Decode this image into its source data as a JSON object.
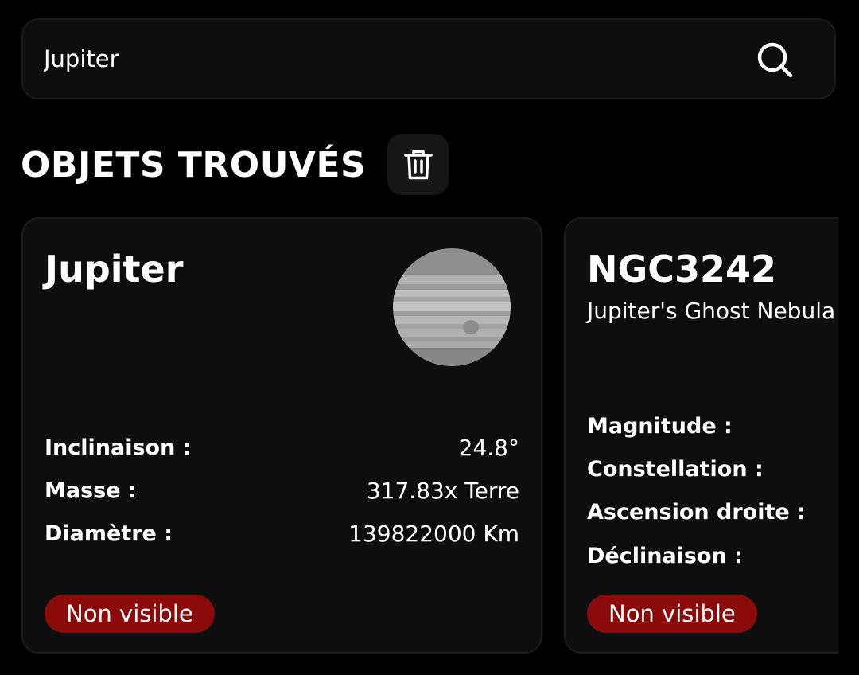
{
  "search": {
    "value": "Jupiter"
  },
  "section": {
    "title": "OBJETS TROUVÉS"
  },
  "icons": {
    "search": "search-icon",
    "delete": "trash-icon"
  },
  "colors": {
    "background": "#000000",
    "card_background": "#0e0e0e",
    "badge_background": "#8b0a0a",
    "text": "#ffffff"
  },
  "cards": [
    {
      "title": "Jupiter",
      "image": "jupiter-image",
      "fields": [
        {
          "label": "Inclinaison :",
          "value": "24.8°"
        },
        {
          "label": "Masse :",
          "value": "317.83x Terre"
        },
        {
          "label": "Diamètre :",
          "value": "139822000 Km"
        }
      ],
      "status": "Non visible"
    },
    {
      "title": "NGC3242",
      "subtitle": "Jupiter's Ghost Nebula",
      "fields": [
        {
          "label": "Magnitude :"
        },
        {
          "label": "Constellation :"
        },
        {
          "label": "Ascension droite :"
        },
        {
          "label": "Déclinaison :"
        }
      ],
      "status": "Non visible"
    }
  ]
}
